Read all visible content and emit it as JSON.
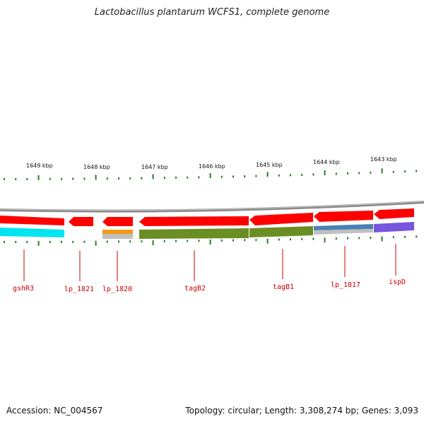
{
  "title": "Lactobacillus plantarum WCFS1, complete genome",
  "footer": {
    "accession": "Accession: NC_004567",
    "summary": "Topology: circular; Length: 3,308,274 bp; Genes: 3,093"
  },
  "colors": {
    "backbone": "#8a8a8a",
    "gene": "#ff0000",
    "tick": "#2a7a2a",
    "label": "#cc0000"
  },
  "scale": {
    "unit": "kbp",
    "labels": [
      "1649 kbp",
      "1648 kbp",
      "1647 kbp",
      "1646 kbp",
      "1645 kbp",
      "1644 kbp",
      "1643 kbp"
    ]
  },
  "genes": [
    {
      "name": "gshR3"
    },
    {
      "name": "lp_1821"
    },
    {
      "name": "lp_1820"
    },
    {
      "name": "tagB2"
    },
    {
      "name": "tagB1"
    },
    {
      "name": "lp_1817"
    },
    {
      "name": "ispD"
    }
  ]
}
